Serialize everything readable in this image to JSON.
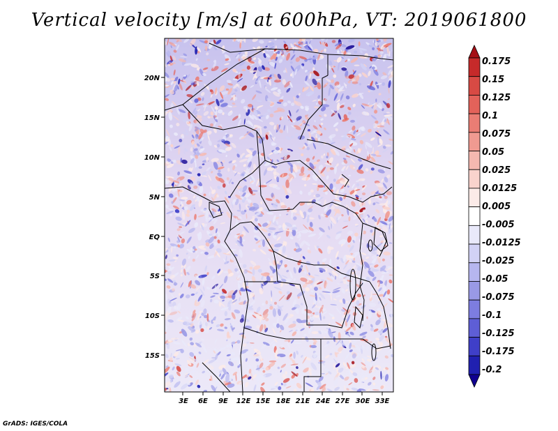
{
  "title": "Vertical velocity [m/s] at 600hPa, VT: 2019061800",
  "credit": "GrADS: IGES/COLA",
  "map": {
    "lat_labels": [
      "20N",
      "15N",
      "10N",
      "5N",
      "EQ",
      "5S",
      "10S",
      "15S"
    ],
    "lon_labels": [
      "3E",
      "6E",
      "9E",
      "12E",
      "15E",
      "18E",
      "21E",
      "24E",
      "27E",
      "30E",
      "33E"
    ]
  },
  "colorbar": {
    "labels": [
      "0.175",
      "0.15",
      "0.125",
      "0.1",
      "0.075",
      "0.05",
      "0.025",
      "0.0125",
      "0.005",
      "-0.005",
      "-0.0125",
      "-0.025",
      "-0.05",
      "-0.075",
      "-0.1",
      "-0.125",
      "-0.175",
      "-0.2"
    ],
    "colors": [
      "#a50f15",
      "#c62a2a",
      "#d84a44",
      "#e3625a",
      "#ea7d74",
      "#f09a91",
      "#f5b8b0",
      "#f9d3cd",
      "#fcebe8",
      "#ffffff",
      "#e9e9fa",
      "#d2d2f5",
      "#b6b6ef",
      "#9999e6",
      "#7d7de0",
      "#5e5ed6",
      "#3f3fc8",
      "#2020b0",
      "#100090"
    ]
  }
}
